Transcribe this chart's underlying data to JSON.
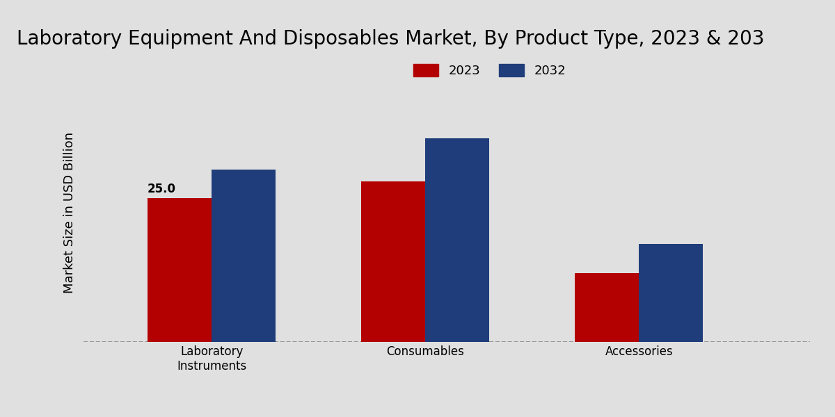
{
  "title": "Laboratory Equipment And Disposables Market, By Product Type, 2023 & 203",
  "ylabel": "Market Size in USD Billion",
  "categories": [
    "Laboratory\nInstruments",
    "Consumables",
    "Accessories"
  ],
  "values_2023": [
    25.0,
    28.0,
    12.0
  ],
  "values_2032": [
    30.0,
    35.5,
    17.0
  ],
  "color_2023": "#b30000",
  "color_2032": "#1f3d7a",
  "annotation_text": "25.0",
  "background_color_top": "#e0e0e0",
  "background_color_bottom": "#d0d0d0",
  "bar_width": 0.3,
  "legend_labels": [
    "2023",
    "2032"
  ],
  "title_fontsize": 20,
  "axis_label_fontsize": 13,
  "tick_fontsize": 12,
  "legend_fontsize": 13,
  "bottom_bar_color": "#cc0000",
  "ylim": [
    0,
    45
  ],
  "xlim": [
    -0.6,
    2.8
  ]
}
